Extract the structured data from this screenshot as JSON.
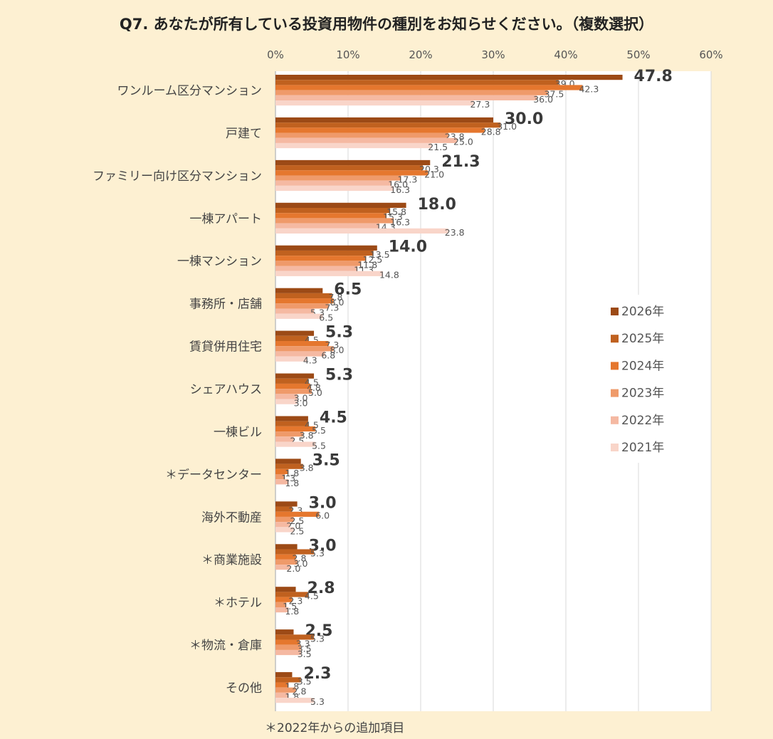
{
  "title": "Q7. あなたが所有している投資用物件の種別をお知らせください。（複数選択）",
  "footnote": "＊2022年からの追加項目",
  "chart_data": {
    "type": "bar",
    "orientation": "horizontal",
    "title": "Q7. あなたが所有している投資用物件の種別をお知らせください。（複数選択）",
    "xlim": [
      0,
      60
    ],
    "xticks": [
      "0%",
      "10%",
      "20%",
      "30%",
      "40%",
      "50%",
      "60%"
    ],
    "grid": true,
    "legend_position": "right",
    "categories": [
      "ワンルーム区分マンション",
      "戸建て",
      "ファミリー向け区分マンション",
      "一棟アパート",
      "一棟マンション",
      "事務所・店舗",
      "賃貸併用住宅",
      "シェアハウス",
      "一棟ビル",
      "＊データセンター",
      "海外不動産",
      "＊商業施設",
      "＊ホテル",
      "＊物流・倉庫",
      "その他"
    ],
    "series": [
      {
        "name": "2026年",
        "color": "#9c4a16",
        "values": [
          47.8,
          30.0,
          21.3,
          18.0,
          14.0,
          6.5,
          5.3,
          5.3,
          4.5,
          3.5,
          3.0,
          3.0,
          2.8,
          2.5,
          2.3
        ]
      },
      {
        "name": "2025年",
        "color": "#c0611f",
        "values": [
          39.0,
          31.0,
          20.3,
          15.8,
          13.5,
          7.8,
          4.5,
          4.5,
          4.5,
          3.8,
          2.3,
          5.3,
          4.5,
          5.3,
          3.5
        ]
      },
      {
        "name": "2024年",
        "color": "#e5772e",
        "values": [
          42.3,
          28.8,
          21.0,
          15.3,
          12.5,
          8.0,
          7.3,
          4.8,
          5.5,
          1.8,
          6.0,
          2.8,
          2.3,
          3.3,
          1.8
        ]
      },
      {
        "name": "2023年",
        "color": "#ef9a6a",
        "values": [
          37.5,
          23.8,
          17.3,
          16.3,
          11.8,
          7.3,
          8.0,
          5.0,
          3.8,
          1.3,
          2.5,
          3.0,
          1.5,
          3.5,
          2.8
        ]
      },
      {
        "name": "2022年",
        "color": "#f5b9a2",
        "values": [
          36.0,
          25.0,
          16.0,
          14.3,
          11.3,
          5.3,
          6.8,
          3.0,
          2.5,
          1.8,
          2.0,
          2.0,
          1.8,
          3.5,
          1.8
        ]
      },
      {
        "name": "2021年",
        "color": "#f9d5c9",
        "values": [
          27.3,
          21.5,
          16.3,
          23.8,
          14.8,
          6.5,
          4.3,
          3.0,
          5.5,
          null,
          2.5,
          null,
          null,
          null,
          5.3
        ]
      }
    ]
  }
}
